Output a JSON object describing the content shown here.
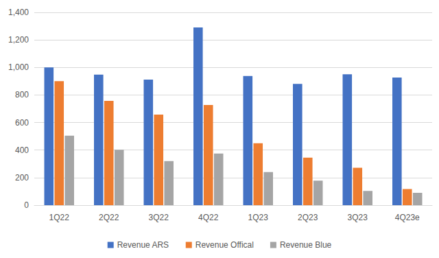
{
  "chart_data": {
    "type": "bar",
    "categories": [
      "1Q22",
      "2Q22",
      "3Q22",
      "4Q22",
      "1Q23",
      "2Q23",
      "3Q23",
      "4Q23e"
    ],
    "series": [
      {
        "name": "Revenue ARS",
        "color": "#4472c4",
        "values": [
          1000,
          948,
          912,
          1290,
          938,
          880,
          950,
          927
        ]
      },
      {
        "name": "Revenue Offical",
        "color": "#ed7d31",
        "values": [
          900,
          757,
          658,
          728,
          450,
          345,
          272,
          117
        ]
      },
      {
        "name": "Revenue Blue",
        "color": "#a5a5a5",
        "values": [
          505,
          402,
          320,
          375,
          240,
          178,
          103,
          90
        ]
      }
    ],
    "ylim": [
      0,
      1400
    ],
    "yticks": [
      0,
      200,
      400,
      600,
      800,
      1000,
      1200,
      1400
    ],
    "grid": true,
    "legend": "bottom"
  }
}
